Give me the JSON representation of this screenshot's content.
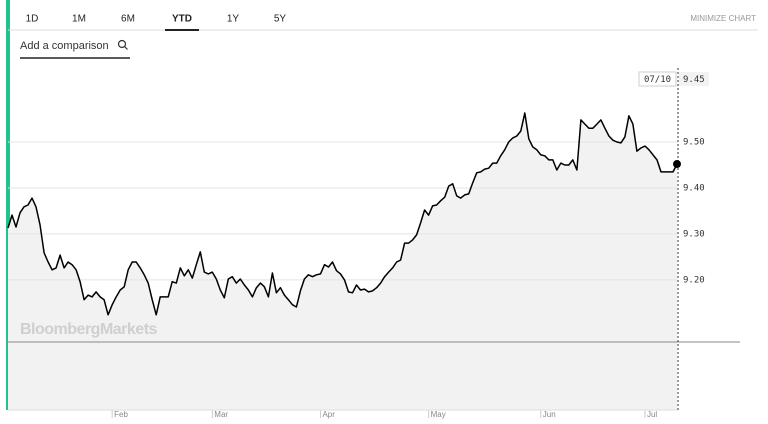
{
  "tabs": [
    "1D",
    "1M",
    "6M",
    "YTD",
    "1Y",
    "5Y"
  ],
  "active_tab": 3,
  "minimize": "MINIMIZE CHART",
  "search_placeholder": "Add a comparison",
  "watermark": "BloombergMarkets",
  "chart_data": {
    "type": "line",
    "color": "#000000",
    "fill": "#f2f2f2",
    "crosshair_label": "07/10",
    "last_value_label": "9.45",
    "baseline": 9.065,
    "x": [
      0,
      1,
      2,
      3,
      4,
      5,
      6,
      7,
      8,
      9,
      10,
      11,
      12,
      13,
      14,
      15,
      16,
      17,
      18,
      19,
      20,
      21,
      22,
      23,
      24,
      25,
      26,
      27,
      28,
      29,
      30,
      31,
      32,
      33,
      34,
      35,
      36,
      37,
      38,
      39,
      40,
      41,
      42,
      43,
      44,
      45,
      46,
      47,
      48,
      49,
      50,
      51,
      52,
      53,
      54,
      55,
      56,
      57,
      58,
      59,
      60,
      61,
      62,
      63,
      64,
      65,
      66,
      67,
      68,
      69,
      70,
      71,
      72,
      73,
      74,
      75,
      76,
      77,
      78,
      79,
      80,
      81,
      82,
      83,
      84,
      85,
      86,
      87,
      88,
      89,
      90,
      91,
      92,
      93,
      94,
      95,
      96,
      97,
      98,
      99,
      100,
      101,
      102,
      103,
      104,
      105,
      106,
      107,
      108,
      109,
      110,
      111,
      112,
      113,
      114,
      115,
      116,
      117,
      118,
      119,
      120,
      121,
      122,
      123,
      124,
      125,
      126,
      127,
      128,
      129,
      130,
      131,
      132,
      133,
      134,
      135,
      136,
      137,
      138,
      139,
      140,
      141,
      142,
      143,
      144,
      145,
      146,
      147,
      148,
      149,
      150,
      151,
      152,
      153,
      154,
      155,
      156,
      157,
      158,
      159,
      160,
      161,
      162,
      163,
      164,
      165,
      166,
      167
    ],
    "values": [
      9.313,
      9.341,
      9.315,
      9.346,
      9.359,
      9.363,
      9.378,
      9.359,
      9.32,
      9.259,
      9.239,
      9.222,
      9.226,
      9.254,
      9.226,
      9.239,
      9.233,
      9.222,
      9.196,
      9.157,
      9.167,
      9.163,
      9.174,
      9.163,
      9.157,
      9.124,
      9.146,
      9.163,
      9.178,
      9.185,
      9.222,
      9.239,
      9.239,
      9.226,
      9.211,
      9.193,
      9.157,
      9.124,
      9.163,
      9.163,
      9.163,
      9.196,
      9.193,
      9.226,
      9.209,
      9.222,
      9.204,
      9.233,
      9.261,
      9.217,
      9.213,
      9.217,
      9.202,
      9.178,
      9.161,
      9.202,
      9.207,
      9.193,
      9.202,
      9.189,
      9.178,
      9.163,
      9.183,
      9.193,
      9.185,
      9.163,
      9.215,
      9.172,
      9.183,
      9.167,
      9.157,
      9.146,
      9.141,
      9.176,
      9.202,
      9.211,
      9.207,
      9.211,
      9.213,
      9.233,
      9.228,
      9.239,
      9.22,
      9.213,
      9.2,
      9.174,
      9.172,
      9.189,
      9.178,
      9.18,
      9.174,
      9.176,
      9.183,
      9.193,
      9.207,
      9.217,
      9.226,
      9.239,
      9.243,
      9.28,
      9.28,
      9.287,
      9.298,
      9.324,
      9.352,
      9.341,
      9.361,
      9.363,
      9.372,
      9.38,
      9.404,
      9.409,
      9.383,
      9.378,
      9.385,
      9.387,
      9.411,
      9.433,
      9.435,
      9.441,
      9.443,
      9.454,
      9.454,
      9.47,
      9.483,
      9.5,
      9.509,
      9.513,
      9.524,
      9.563,
      9.507,
      9.489,
      9.483,
      9.472,
      9.47,
      9.461,
      9.461,
      9.439,
      9.454,
      9.45,
      9.45,
      9.461,
      9.439,
      9.548,
      9.539,
      9.53,
      9.53,
      9.539,
      9.548,
      9.53,
      9.513,
      9.504,
      9.5,
      9.498,
      9.511,
      9.557,
      9.539,
      9.48,
      9.487,
      9.491,
      9.483,
      9.472,
      9.461,
      9.435,
      9.435,
      9.435,
      9.435,
      9.452
    ],
    "xlim": [
      0,
      167
    ],
    "xticks": [
      {
        "value": 26,
        "label": "Feb"
      },
      {
        "value": 51,
        "label": "Mar"
      },
      {
        "value": 78,
        "label": "Apr"
      },
      {
        "value": 105,
        "label": "May"
      },
      {
        "value": 133,
        "label": "Jun"
      },
      {
        "value": 159,
        "label": "Jul"
      }
    ],
    "ylim": [
      8.917,
      9.674
    ],
    "yticks": [
      {
        "value": 9.5,
        "label": "9.50"
      },
      {
        "value": 9.4,
        "label": "9.40"
      },
      {
        "value": 9.3,
        "label": "9.30"
      },
      {
        "value": 9.2,
        "label": "9.20"
      }
    ],
    "grid": true
  }
}
